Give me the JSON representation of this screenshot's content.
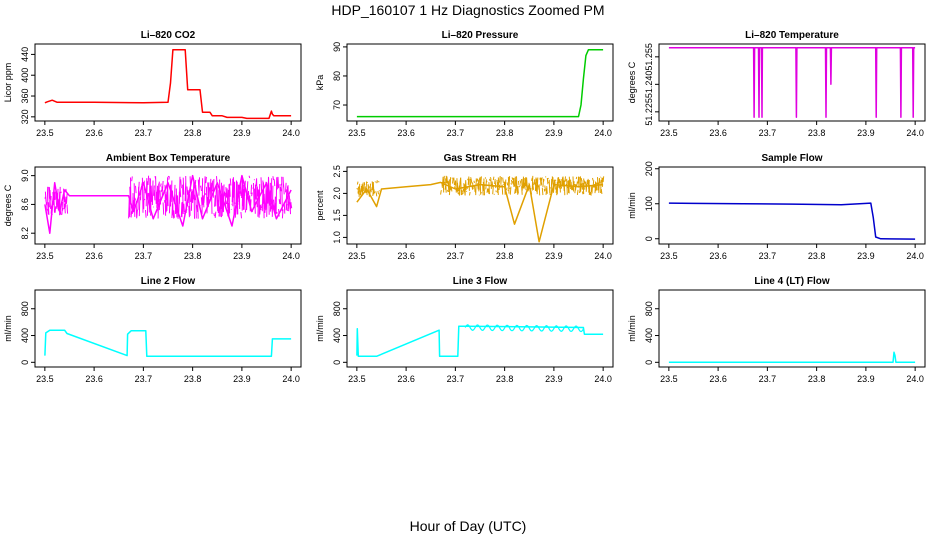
{
  "figure": {
    "title": "HDP_160107  1 Hz Diagnostics Zoomed PM",
    "xlabel": "Hour of Day (UTC)"
  },
  "chart_data": [
    {
      "type": "line",
      "title": "Li–820 CO2",
      "ylabel": "Licor ppm",
      "color": "#ff0000",
      "xlim": [
        23.48,
        24.02
      ],
      "ylim": [
        312,
        460
      ],
      "xticks": [
        "23.5",
        "23.6",
        "23.7",
        "23.8",
        "23.9",
        "24.0"
      ],
      "yticks": [
        "320",
        "360",
        "400",
        "440"
      ],
      "x": [
        23.5,
        23.505,
        23.515,
        23.525,
        23.55,
        23.6,
        23.7,
        23.75,
        23.755,
        23.76,
        23.785,
        23.79,
        23.815,
        23.82,
        23.835,
        23.84,
        23.86,
        23.87,
        23.9,
        23.91,
        23.955,
        23.96,
        23.962,
        23.965,
        24.0
      ],
      "y": [
        347,
        349,
        352,
        348,
        348,
        348,
        347,
        348,
        385,
        449,
        449,
        372,
        372,
        329,
        329,
        322,
        322,
        319,
        319,
        317,
        317,
        331,
        325,
        322,
        322
      ]
    },
    {
      "type": "line",
      "title": "Li–820 Pressure",
      "ylabel": "kPa",
      "color": "#00cc00",
      "xlim": [
        23.48,
        24.02
      ],
      "ylim": [
        64.5,
        91
      ],
      "xticks": [
        "23.5",
        "23.6",
        "23.7",
        "23.8",
        "23.9",
        "24.0"
      ],
      "yticks": [
        "70",
        "80",
        "90"
      ],
      "x": [
        23.5,
        23.6,
        23.7,
        23.8,
        23.9,
        23.95,
        23.955,
        23.96,
        23.965,
        23.97,
        24.0
      ],
      "y": [
        66,
        66,
        66,
        66,
        66,
        66,
        70,
        79,
        87,
        89,
        89
      ]
    },
    {
      "type": "line",
      "title": "Li–820 Temperature",
      "ylabel": "degrees C",
      "color": "#e000e0",
      "xlim": [
        23.48,
        24.02
      ],
      "ylim": [
        51.22,
        51.262
      ],
      "xticks": [
        "23.5",
        "23.6",
        "23.7",
        "23.8",
        "23.9",
        "24.0"
      ],
      "yticks": [
        "51.225",
        "51.240",
        "51.255"
      ],
      "x": [
        23.5,
        23.672,
        23.673,
        23.674,
        23.682,
        23.683,
        23.684,
        23.688,
        23.689,
        23.69,
        23.758,
        23.759,
        23.76,
        23.818,
        23.819,
        23.82,
        23.828,
        23.829,
        23.83,
        23.92,
        23.921,
        23.922,
        23.97,
        23.971,
        23.972,
        23.995,
        23.996,
        23.997,
        24.0
      ],
      "y": [
        51.26,
        51.26,
        51.222,
        51.26,
        51.26,
        51.222,
        51.26,
        51.26,
        51.222,
        51.26,
        51.26,
        51.222,
        51.26,
        51.26,
        51.222,
        51.26,
        51.26,
        51.24,
        51.26,
        51.26,
        51.222,
        51.26,
        51.26,
        51.222,
        51.26,
        51.26,
        51.222,
        51.26,
        51.26
      ]
    },
    {
      "type": "line",
      "title": "Ambient Box Temperature",
      "ylabel": "degrees C",
      "color": "#ff00ff",
      "xlim": [
        23.48,
        24.02
      ],
      "ylim": [
        8.05,
        9.12
      ],
      "xticks": [
        "23.5",
        "23.6",
        "23.7",
        "23.8",
        "23.9",
        "24.0"
      ],
      "yticks": [
        "8.2",
        "8.6",
        "9.0"
      ],
      "x": [
        23.5,
        23.51,
        23.52,
        23.53,
        23.54,
        23.55,
        23.6,
        23.65,
        23.67,
        23.68,
        23.7,
        23.72,
        23.75,
        23.78,
        23.8,
        23.82,
        23.85,
        23.88,
        23.9,
        23.92,
        23.95,
        23.97,
        24.0
      ],
      "y": [
        8.6,
        8.2,
        8.9,
        8.5,
        8.8,
        8.72,
        8.72,
        8.72,
        8.72,
        8.5,
        8.9,
        8.4,
        8.9,
        8.3,
        9.0,
        8.4,
        8.9,
        8.3,
        9.0,
        8.5,
        8.9,
        8.4,
        8.8
      ],
      "band": {
        "x0": 23.67,
        "x1": 24.0,
        "low": 8.4,
        "high": 9.0,
        "x0b": 23.5,
        "x1b": 23.545,
        "lowb": 8.45,
        "highb": 8.85
      }
    },
    {
      "type": "line",
      "title": "Gas Stream RH",
      "ylabel": "percent",
      "color": "#e0a000",
      "xlim": [
        23.48,
        24.02
      ],
      "ylim": [
        0.85,
        2.6
      ],
      "xticks": [
        "23.5",
        "23.6",
        "23.7",
        "23.8",
        "23.9",
        "24.0"
      ],
      "yticks": [
        "1.0",
        "1.5",
        "2.0",
        "2.5"
      ],
      "x": [
        23.5,
        23.52,
        23.54,
        23.55,
        23.6,
        23.65,
        23.67,
        23.7,
        23.75,
        23.8,
        23.82,
        23.85,
        23.87,
        23.9,
        23.95,
        24.0
      ],
      "y": [
        1.8,
        2.1,
        1.7,
        2.1,
        2.15,
        2.2,
        2.25,
        2.1,
        2.2,
        2.15,
        1.3,
        2.2,
        0.9,
        2.2,
        2.15,
        2.2
      ],
      "band": {
        "x0": 23.67,
        "x1": 24.0,
        "low": 1.95,
        "high": 2.4,
        "x0b": 23.5,
        "x1b": 23.545,
        "lowb": 1.9,
        "highb": 2.3
      }
    },
    {
      "type": "line",
      "title": "Sample Flow",
      "ylabel": "ml/min",
      "color": "#0000cc",
      "xlim": [
        23.48,
        24.02
      ],
      "ylim": [
        -15,
        205
      ],
      "xticks": [
        "23.5",
        "23.6",
        "23.7",
        "23.8",
        "23.9",
        "24.0"
      ],
      "yticks": [
        "0",
        "100",
        "200"
      ],
      "x": [
        23.5,
        23.55,
        23.65,
        23.75,
        23.85,
        23.91,
        23.915,
        23.92,
        23.93,
        24.0
      ],
      "y": [
        102,
        101,
        100,
        99,
        97,
        102,
        60,
        5,
        0,
        -1
      ]
    },
    {
      "type": "line",
      "title": "Line 2 Flow",
      "ylabel": "ml/min",
      "color": "#00ffff",
      "xlim": [
        23.48,
        24.02
      ],
      "ylim": [
        -70,
        1080
      ],
      "xticks": [
        "23.5",
        "23.6",
        "23.7",
        "23.8",
        "23.9",
        "24.0"
      ],
      "yticks": [
        "0",
        "400",
        "800"
      ],
      "x": [
        23.5,
        23.502,
        23.51,
        23.54,
        23.545,
        23.667,
        23.668,
        23.675,
        23.705,
        23.707,
        23.96,
        23.962,
        24.0
      ],
      "y": [
        100,
        440,
        480,
        480,
        430,
        100,
        420,
        470,
        470,
        90,
        90,
        350,
        350
      ]
    },
    {
      "type": "line",
      "title": "Line 3 Flow",
      "ylabel": "ml/min",
      "color": "#00ffff",
      "xlim": [
        23.48,
        24.02
      ],
      "ylim": [
        -70,
        1080
      ],
      "xticks": [
        "23.5",
        "23.6",
        "23.7",
        "23.8",
        "23.9",
        "24.0"
      ],
      "yticks": [
        "0",
        "400",
        "800"
      ],
      "x": [
        23.5,
        23.501,
        23.503,
        23.54,
        23.667,
        23.668,
        23.705,
        23.707,
        23.72,
        23.96,
        23.962,
        24.0
      ],
      "y": [
        100,
        500,
        90,
        90,
        480,
        90,
        90,
        540,
        540,
        520,
        420,
        420
      ],
      "wave": {
        "x0": 23.72,
        "x1": 23.96,
        "amp": 40,
        "period": 0.02
      }
    },
    {
      "type": "line",
      "title": "Line 4 (LT) Flow",
      "ylabel": "ml/min",
      "color": "#00ffff",
      "xlim": [
        23.48,
        24.02
      ],
      "ylim": [
        -70,
        1080
      ],
      "xticks": [
        "23.5",
        "23.6",
        "23.7",
        "23.8",
        "23.9",
        "24.0"
      ],
      "yticks": [
        "0",
        "400",
        "800"
      ],
      "x": [
        23.5,
        23.95,
        23.955,
        23.957,
        23.959,
        23.961,
        23.963,
        24.0
      ],
      "y": [
        0,
        0,
        0,
        150,
        100,
        0,
        0,
        0
      ]
    }
  ]
}
